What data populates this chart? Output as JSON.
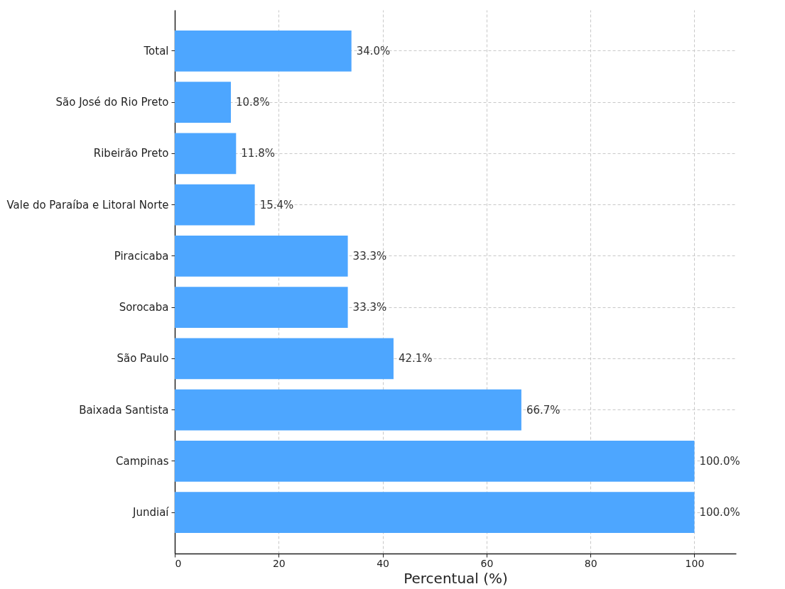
{
  "chart_data": {
    "type": "bar",
    "orientation": "horizontal",
    "xlabel": "Percentual (%)",
    "categories": [
      "Total",
      "São José do Rio Preto",
      "Ribeirão Preto",
      "Vale do Paraíba e Litoral Norte",
      "Piracicaba",
      "Sorocaba",
      "São Paulo",
      "Baixada Santista",
      "Campinas",
      "Jundiaí"
    ],
    "values": [
      34.0,
      10.8,
      11.8,
      15.4,
      33.3,
      33.3,
      42.1,
      66.7,
      100.0,
      100.0
    ],
    "value_labels": [
      "34.0%",
      "10.8%",
      "11.8%",
      "15.4%",
      "33.3%",
      "33.3%",
      "42.1%",
      "66.7%",
      "100.0%",
      "100.0%"
    ],
    "color": "#4da6ff",
    "xlim": [
      0,
      108
    ],
    "xticks": [
      0,
      20,
      40,
      60,
      80,
      100
    ],
    "grid": true
  }
}
